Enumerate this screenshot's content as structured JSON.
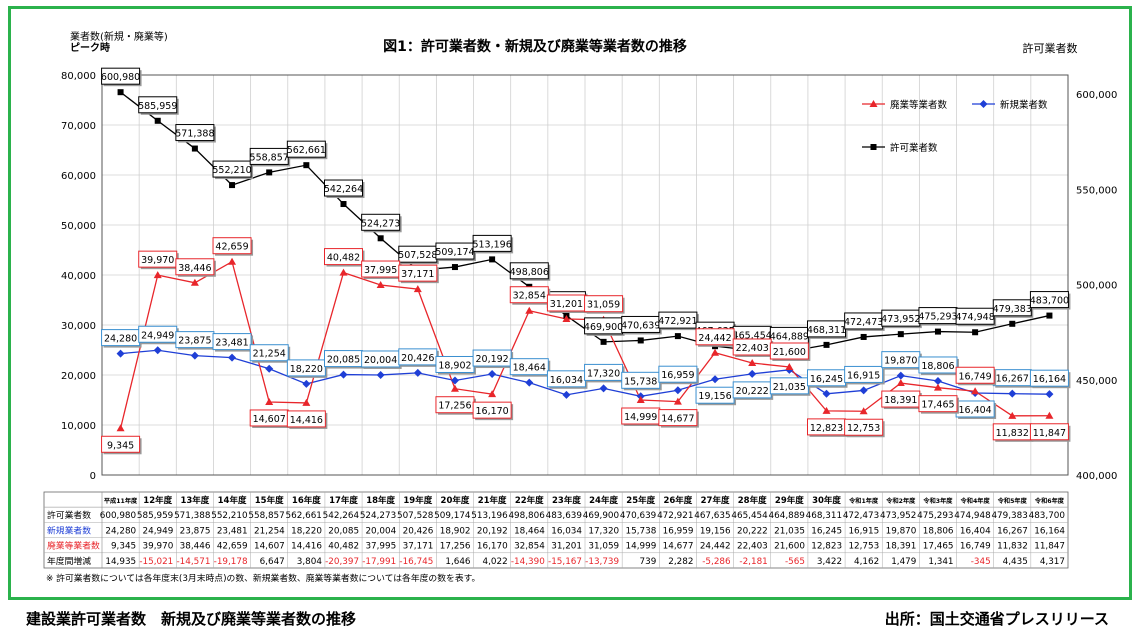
{
  "chart_data": {
    "type": "line",
    "title": "図1：許可業者数・新規及び廃業等業者数の推移",
    "left_axis_title": "業者数(新規・廃業等)",
    "left_axis_subtitle": "ピーク時",
    "right_axis_title": "許可業者数",
    "ylim_left": [
      0,
      80000
    ],
    "ylim_right": [
      400000,
      610000
    ],
    "yticks_left": [
      "0",
      "10,000",
      "20,000",
      "30,000",
      "40,000",
      "50,000",
      "60,000",
      "70,000",
      "80,000"
    ],
    "yticks_right": [
      "400,000",
      "450,000",
      "500,000",
      "550,000",
      "600,000"
    ],
    "grid": true,
    "legend_position": "top-right",
    "categories": [
      "平成11年度",
      "12年度",
      "13年度",
      "14年度",
      "15年度",
      "16年度",
      "17年度",
      "18年度",
      "19年度",
      "20年度",
      "21年度",
      "22年度",
      "23年度",
      "24年度",
      "25年度",
      "26年度",
      "27年度",
      "28年度",
      "29年度",
      "30年度",
      "令和1年度",
      "令和2年度",
      "令和3年度",
      "令和4年度",
      "令和5年度",
      "令和6年度"
    ],
    "series": [
      {
        "name": "許可業者数",
        "axis": "right",
        "color": "#000000",
        "values": [
          600980,
          585959,
          571388,
          552210,
          558857,
          562661,
          542264,
          524273,
          507528,
          509174,
          513196,
          498806,
          483639,
          469900,
          470639,
          472921,
          467635,
          465454,
          464889,
          468311,
          472473,
          473952,
          475293,
          474948,
          479383,
          483700
        ],
        "labels": [
          "600,980",
          "585,959",
          "571,388",
          "552,210",
          "558,857",
          "562,661",
          "542,264",
          "524,273",
          "507,528",
          "509,174",
          "513,196",
          "498,806",
          "483,639",
          "469,900",
          "470,639",
          "472,921",
          "467,635",
          "465,454",
          "464,889",
          "468,311",
          "472,473",
          "473,952",
          "475,293",
          "474,948",
          "479,383",
          "483,700"
        ]
      },
      {
        "name": "新規業者数",
        "axis": "left",
        "color": "#1f3fd6",
        "values": [
          24280,
          24949,
          23875,
          23481,
          21254,
          18220,
          20085,
          20004,
          20426,
          18902,
          20192,
          18464,
          16034,
          17320,
          15738,
          16959,
          19156,
          20222,
          21035,
          16245,
          16915,
          19870,
          18806,
          16404,
          16267,
          16164
        ],
        "labels": [
          "24,280",
          "24,949",
          "23,875",
          "23,481",
          "21,254",
          "18,220",
          "20,085",
          "20,004",
          "20,426",
          "18,902",
          "20,192",
          "18,464",
          "16,034",
          "17,320",
          "15,738",
          "16,959",
          "19,156",
          "20,222",
          "21,035",
          "16,245",
          "16,915",
          "19,870",
          "18,806",
          "16,404",
          "16,267",
          "16,164"
        ]
      },
      {
        "name": "廃業等業者数",
        "axis": "left",
        "color": "#e8262b",
        "values": [
          9345,
          39970,
          38446,
          42659,
          14607,
          14416,
          40482,
          37995,
          37171,
          17256,
          16170,
          32854,
          31201,
          31059,
          14999,
          14677,
          24442,
          22403,
          21600,
          12823,
          12753,
          18391,
          17465,
          16749,
          11832,
          11847
        ],
        "labels": [
          "9,345",
          "39,970",
          "38,446",
          "42,659",
          "14,607",
          "14,416",
          "40,482",
          "37,995",
          "37,171",
          "17,256",
          "16,170",
          "32,854",
          "31,201",
          "31,059",
          "14,999",
          "14,677",
          "24,442",
          "22,403",
          "21,600",
          "12,823",
          "12,753",
          "18,391",
          "17,465",
          "16,749",
          "11,832",
          "11,847"
        ]
      }
    ],
    "table": {
      "row_labels": [
        "許可業者数",
        "新規業者数",
        "廃業等業者数",
        "年度間増減"
      ],
      "row_colors": [
        "#000000",
        "#1f3fd6",
        "#e8262b",
        "#000000"
      ],
      "rows": [
        [
          "600,980",
          "585,959",
          "571,388",
          "552,210",
          "558,857",
          "562,661",
          "542,264",
          "524,273",
          "507,528",
          "509,174",
          "513,196",
          "498,806",
          "483,639",
          "469,900",
          "470,639",
          "472,921",
          "467,635",
          "465,454",
          "464,889",
          "468,311",
          "472,473",
          "473,952",
          "475,293",
          "474,948",
          "479,383",
          "483,700"
        ],
        [
          "24,280",
          "24,949",
          "23,875",
          "23,481",
          "21,254",
          "18,220",
          "20,085",
          "20,004",
          "20,426",
          "18,902",
          "20,192",
          "18,464",
          "16,034",
          "17,320",
          "15,738",
          "16,959",
          "19,156",
          "20,222",
          "21,035",
          "16,245",
          "16,915",
          "19,870",
          "18,806",
          "16,404",
          "16,267",
          "16,164"
        ],
        [
          "9,345",
          "39,970",
          "38,446",
          "42,659",
          "14,607",
          "14,416",
          "40,482",
          "37,995",
          "37,171",
          "17,256",
          "16,170",
          "32,854",
          "31,201",
          "31,059",
          "14,999",
          "14,677",
          "24,442",
          "22,403",
          "21,600",
          "12,823",
          "12,753",
          "18,391",
          "17,465",
          "16,749",
          "11,832",
          "11,847"
        ],
        [
          "14,935",
          "-15,021",
          "-14,571",
          "-19,178",
          "6,647",
          "3,804",
          "-20,397",
          "-17,991",
          "-16,745",
          "1,646",
          "4,022",
          "-14,390",
          "-15,167",
          "-13,739",
          "739",
          "2,282",
          "-5,286",
          "-2,181",
          "-565",
          "3,422",
          "4,162",
          "1,479",
          "1,341",
          "-345",
          "4,435",
          "4,317"
        ]
      ]
    },
    "footnote": "※ 許可業者数については各年度末(3月末時点)の数、新規業者数、廃業等業者数については各年度の数を表す。"
  },
  "captions": {
    "left": "建設業許可業者数　新規及び廃業等業者数の推移",
    "right": "出所：国土交通省プレスリリース"
  },
  "colors": {
    "frame": "#2bb24c",
    "black": "#000000",
    "blue": "#1f3fd6",
    "red": "#e8262b"
  }
}
